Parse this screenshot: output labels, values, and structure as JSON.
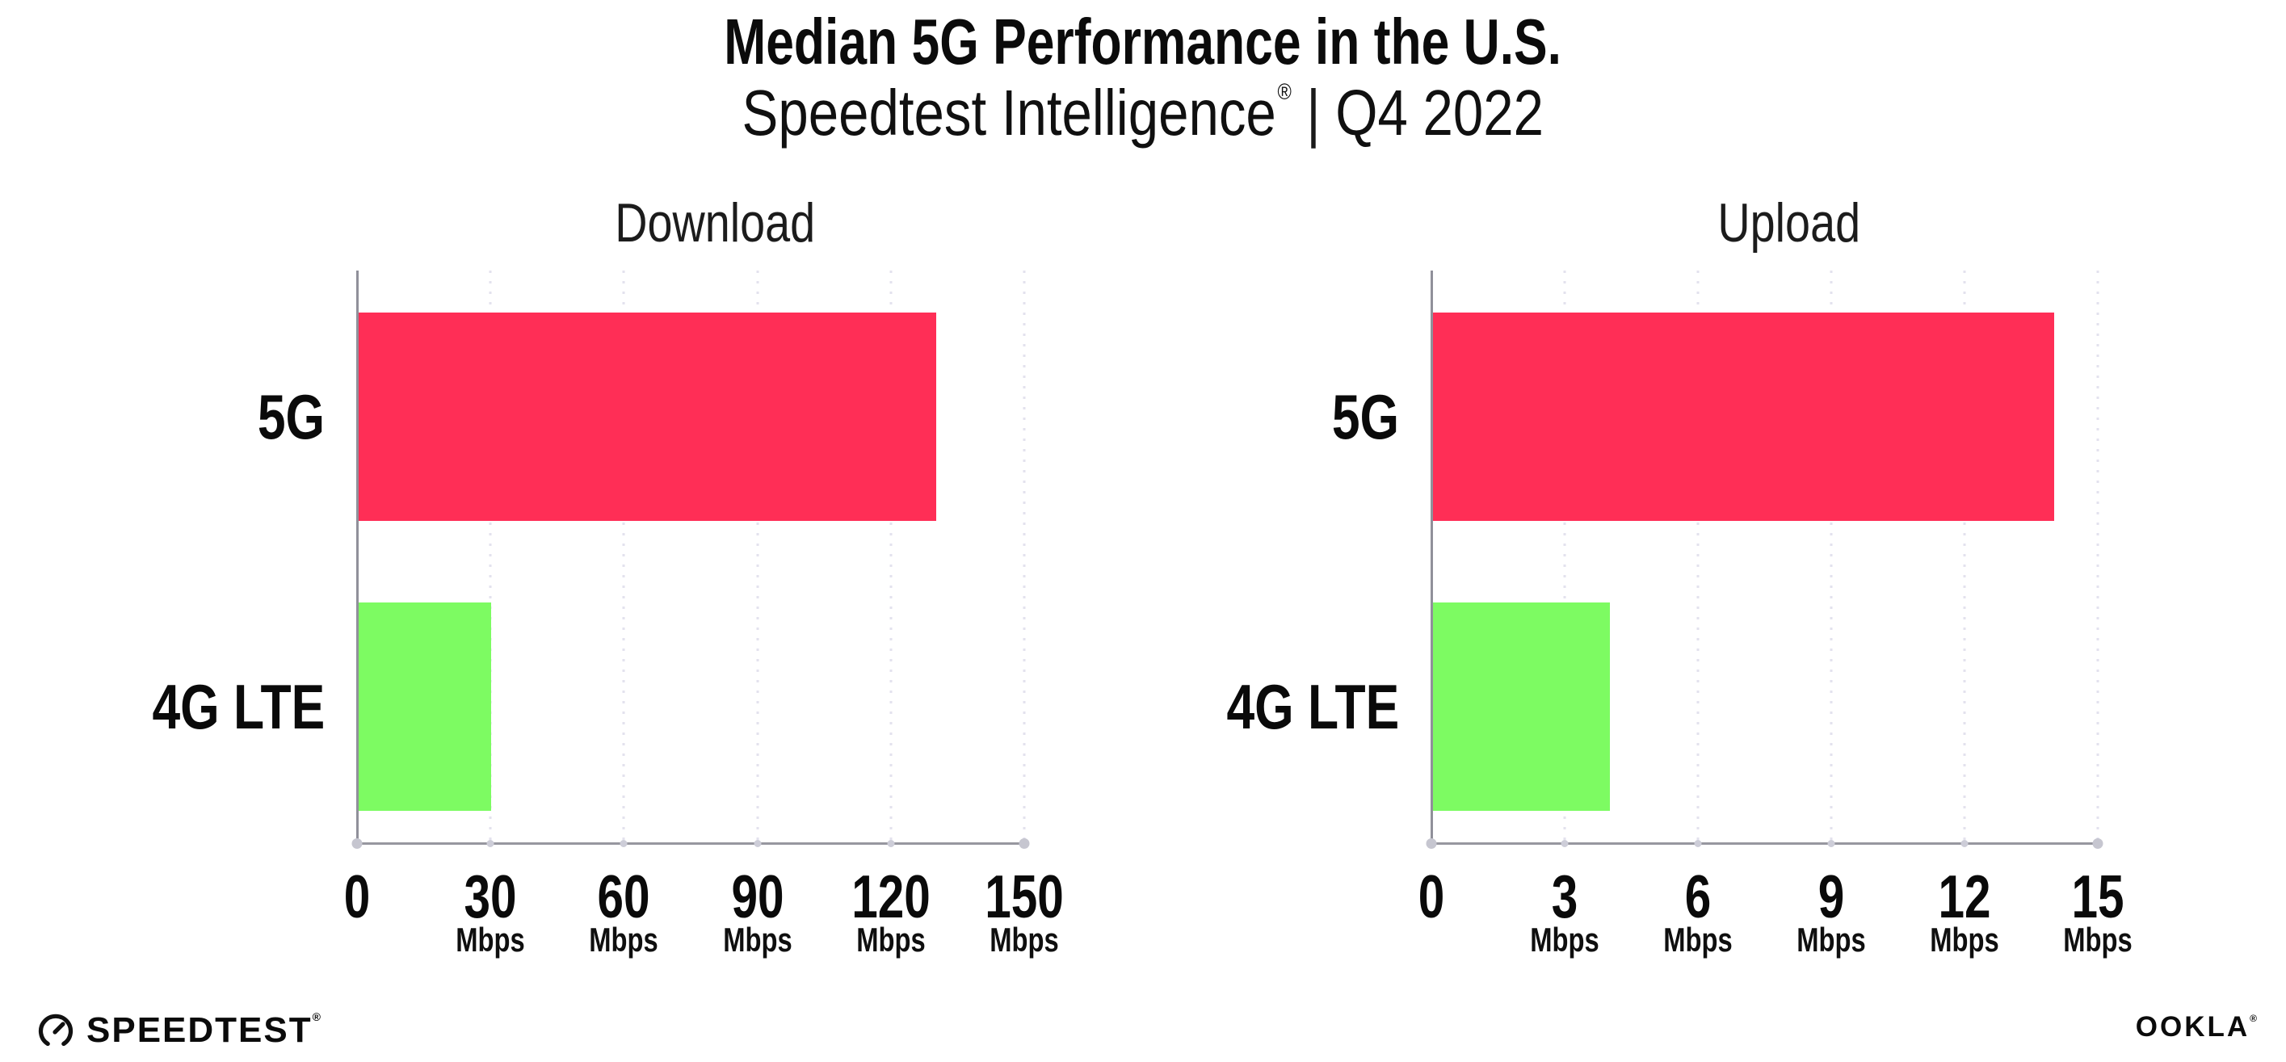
{
  "page": {
    "title": "Median 5G Performance in the U.S.",
    "subtitle_brand": "Speedtest Intelligence",
    "subtitle_reg": "®",
    "subtitle_sep": "|",
    "subtitle_period": "Q4 2022"
  },
  "colors": {
    "bar_5g": "#FF2E56",
    "bar_4g_lte": "#7DFB62",
    "gridline": "#E3E2EE",
    "axis": "#94949C",
    "text": "#0B0B0B"
  },
  "chart_data": [
    {
      "type": "bar",
      "orientation": "horizontal",
      "title": "Download",
      "categories": [
        "5G",
        "4G LTE"
      ],
      "values": [
        130,
        30
      ],
      "unit": "Mbps",
      "xlim": [
        0,
        150
      ],
      "xticks": [
        0,
        30,
        60,
        90,
        120,
        150
      ],
      "tick_unit": "Mbps",
      "bar_colors": [
        "#FF2E56",
        "#7DFB62"
      ],
      "grid": "vertical-dotted",
      "legend": "none"
    },
    {
      "type": "bar",
      "orientation": "horizontal",
      "title": "Upload",
      "categories": [
        "5G",
        "4G LTE"
      ],
      "values": [
        14,
        4
      ],
      "unit": "Mbps",
      "xlim": [
        0,
        15
      ],
      "xticks": [
        0,
        3,
        6,
        9,
        12,
        15
      ],
      "tick_unit": "Mbps",
      "bar_colors": [
        "#FF2E56",
        "#7DFB62"
      ],
      "grid": "vertical-dotted",
      "legend": "none"
    }
  ],
  "footer": {
    "speedtest_icon": "gauge-icon",
    "speedtest_text": "SPEEDTEST",
    "speedtest_mark": "®",
    "ookla_text": "OOKLA",
    "ookla_mark": "®"
  }
}
